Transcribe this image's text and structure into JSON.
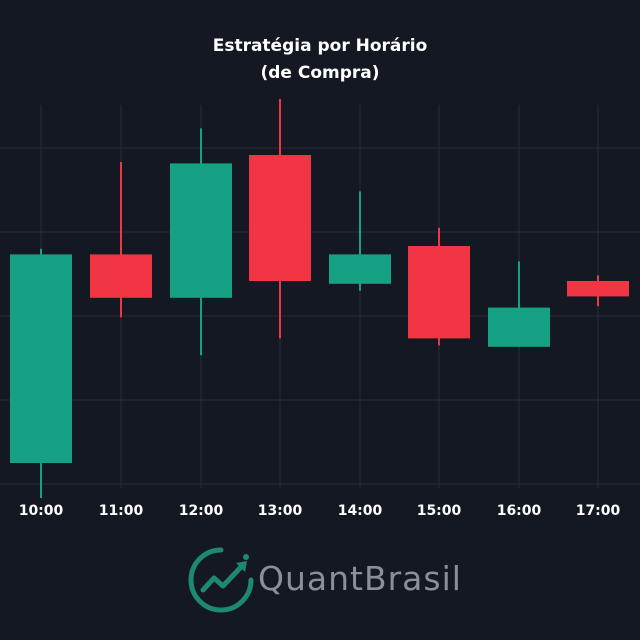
{
  "chart_data": {
    "type": "candlestick",
    "title": "Estratégia por Horário",
    "subtitle": "(de Compra)",
    "categories": [
      "10:00",
      "11:00",
      "12:00",
      "13:00",
      "14:00",
      "15:00",
      "16:00",
      "17:00"
    ],
    "candles": [
      {
        "time": "10:00",
        "open": -12.5,
        "close": 2.4,
        "high": 2.8,
        "low": -15.0,
        "direction": "up"
      },
      {
        "time": "11:00",
        "open": 2.4,
        "close": -0.7,
        "high": 9.0,
        "low": -2.1,
        "direction": "down"
      },
      {
        "time": "12:00",
        "open": -0.7,
        "close": 8.9,
        "high": 11.4,
        "low": -4.8,
        "direction": "up"
      },
      {
        "time": "13:00",
        "open": 9.5,
        "close": 0.5,
        "high": 13.5,
        "low": -3.6,
        "direction": "down"
      },
      {
        "time": "14:00",
        "open": 0.3,
        "close": 2.4,
        "high": 6.9,
        "low": -0.2,
        "direction": "up"
      },
      {
        "time": "15:00",
        "open": 3.0,
        "close": -3.6,
        "high": 4.3,
        "low": -4.1,
        "direction": "down"
      },
      {
        "time": "16:00",
        "open": -4.2,
        "close": -1.4,
        "high": 1.9,
        "low": -4.2,
        "direction": "up"
      },
      {
        "time": "17:00",
        "open": 0.5,
        "close": -0.6,
        "high": 0.9,
        "low": -1.3,
        "direction": "down"
      }
    ],
    "ylim": [
      -16,
      16
    ],
    "grid": true,
    "colors": {
      "up": "#14a184",
      "down": "#f23545",
      "grid": "#272c38",
      "background": "#141822"
    }
  },
  "logo": {
    "text_quant": "Quant",
    "text_brasil": "Brasil",
    "icon": "growth-chart-icon",
    "color": "#1d8a6f"
  }
}
